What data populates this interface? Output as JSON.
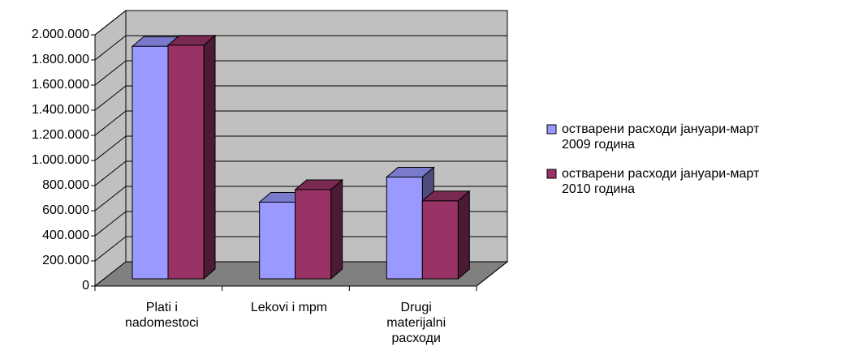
{
  "chart_data": {
    "type": "bar3d",
    "categories": [
      "Plati i\nnadomestoci",
      "Lekovi i mpm",
      "Drugi\nmaterijalni\nрасходи"
    ],
    "series": [
      {
        "name": "остварени расходи јануари-март\n2009 година",
        "color": "#9999ff",
        "values": [
          1850000,
          610000,
          810000
        ]
      },
      {
        "name": "остварени расходи јануари-март\n2010 година",
        "color": "#993366",
        "values": [
          1860000,
          710000,
          620000
        ]
      }
    ],
    "ylim": [
      0,
      2000000
    ],
    "yticks": [
      0,
      {
        "value": 200000,
        "label": "200.000"
      },
      {
        "value": 400000,
        "label": "400.000"
      },
      {
        "value": 600000,
        "label": "600.000"
      },
      {
        "value": 800000,
        "label": "800.000"
      },
      {
        "value": 1000000,
        "label": "1.000.000"
      },
      {
        "value": 1200000,
        "label": "1.200.000"
      },
      {
        "value": 1400000,
        "label": "1.400.000"
      },
      {
        "value": 1600000,
        "label": "1.600.000"
      },
      {
        "value": 1800000,
        "label": "1.800.000"
      },
      {
        "value": 2000000,
        "label": "2.000.000"
      }
    ],
    "grid": true,
    "legend": "right"
  }
}
